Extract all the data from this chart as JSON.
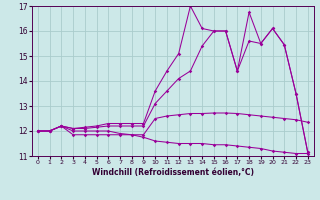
{
  "xlabel": "Windchill (Refroidissement éolien,°C)",
  "bg_color": "#cce8e8",
  "line_color": "#990099",
  "grid_color": "#aacccc",
  "xlim": [
    -0.5,
    23.5
  ],
  "ylim": [
    11,
    17
  ],
  "xticks": [
    0,
    1,
    2,
    3,
    4,
    5,
    6,
    7,
    8,
    9,
    10,
    11,
    12,
    13,
    14,
    15,
    16,
    17,
    18,
    19,
    20,
    21,
    22,
    23
  ],
  "yticks": [
    11,
    12,
    13,
    14,
    15,
    16,
    17
  ],
  "line1_x": [
    0,
    1,
    2,
    3,
    4,
    5,
    6,
    7,
    8,
    9,
    10,
    11,
    12,
    13,
    14,
    15,
    16,
    17,
    18,
    19,
    20,
    21,
    22,
    23
  ],
  "line1_y": [
    12.0,
    12.0,
    12.2,
    11.85,
    11.85,
    11.85,
    11.85,
    11.85,
    11.85,
    11.75,
    11.6,
    11.55,
    11.5,
    11.5,
    11.5,
    11.45,
    11.45,
    11.4,
    11.35,
    11.3,
    11.2,
    11.15,
    11.1,
    11.1
  ],
  "line2_x": [
    0,
    1,
    2,
    3,
    4,
    5,
    6,
    7,
    8,
    9,
    10,
    11,
    12,
    13,
    14,
    15,
    16,
    17,
    18,
    19,
    20,
    21,
    22,
    23
  ],
  "line2_y": [
    12.0,
    12.0,
    12.2,
    12.0,
    12.0,
    12.0,
    12.0,
    11.9,
    11.85,
    11.85,
    12.5,
    12.6,
    12.65,
    12.7,
    12.7,
    12.72,
    12.72,
    12.7,
    12.65,
    12.6,
    12.55,
    12.5,
    12.45,
    12.35
  ],
  "line3_x": [
    0,
    1,
    2,
    3,
    4,
    5,
    6,
    7,
    8,
    9,
    10,
    11,
    12,
    13,
    14,
    15,
    16,
    17,
    18,
    19,
    20,
    21,
    22,
    23
  ],
  "line3_y": [
    12.0,
    12.0,
    12.2,
    12.1,
    12.1,
    12.15,
    12.2,
    12.2,
    12.2,
    12.2,
    13.1,
    13.6,
    14.1,
    14.4,
    15.4,
    16.0,
    16.0,
    14.4,
    15.6,
    15.5,
    16.1,
    15.45,
    13.5,
    11.15
  ],
  "line4_x": [
    0,
    1,
    2,
    3,
    4,
    5,
    6,
    7,
    8,
    9,
    10,
    11,
    12,
    13,
    14,
    15,
    16,
    17,
    18,
    19,
    20,
    21,
    22,
    23
  ],
  "line4_y": [
    12.0,
    12.0,
    12.2,
    12.1,
    12.15,
    12.2,
    12.3,
    12.3,
    12.3,
    12.3,
    13.6,
    14.4,
    15.1,
    17.0,
    16.1,
    16.0,
    16.0,
    14.4,
    16.75,
    15.5,
    16.1,
    15.45,
    13.5,
    11.15
  ]
}
